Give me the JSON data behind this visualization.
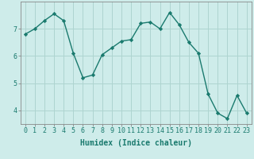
{
  "x": [
    0,
    1,
    2,
    3,
    4,
    5,
    6,
    7,
    8,
    9,
    10,
    11,
    12,
    13,
    14,
    15,
    16,
    17,
    18,
    19,
    20,
    21,
    22,
    23
  ],
  "y": [
    6.8,
    7.0,
    7.3,
    7.55,
    7.3,
    6.1,
    5.2,
    5.3,
    6.05,
    6.3,
    6.55,
    6.6,
    7.2,
    7.25,
    7.0,
    7.6,
    7.15,
    6.5,
    6.1,
    4.6,
    3.9,
    3.7,
    4.55,
    3.9
  ],
  "line_color": "#1a7a6e",
  "marker": "D",
  "marker_size": 2.2,
  "linewidth": 1.0,
  "bg_color": "#ceecea",
  "grid_color": "#aed4d0",
  "xlabel": "Humidex (Indice chaleur)",
  "xlim": [
    -0.5,
    23.5
  ],
  "ylim": [
    3.5,
    8.0
  ],
  "yticks": [
    4,
    5,
    6,
    7
  ],
  "xticks": [
    0,
    1,
    2,
    3,
    4,
    5,
    6,
    7,
    8,
    9,
    10,
    11,
    12,
    13,
    14,
    15,
    16,
    17,
    18,
    19,
    20,
    21,
    22,
    23
  ],
  "xlabel_fontsize": 7.0,
  "tick_fontsize": 6.0
}
